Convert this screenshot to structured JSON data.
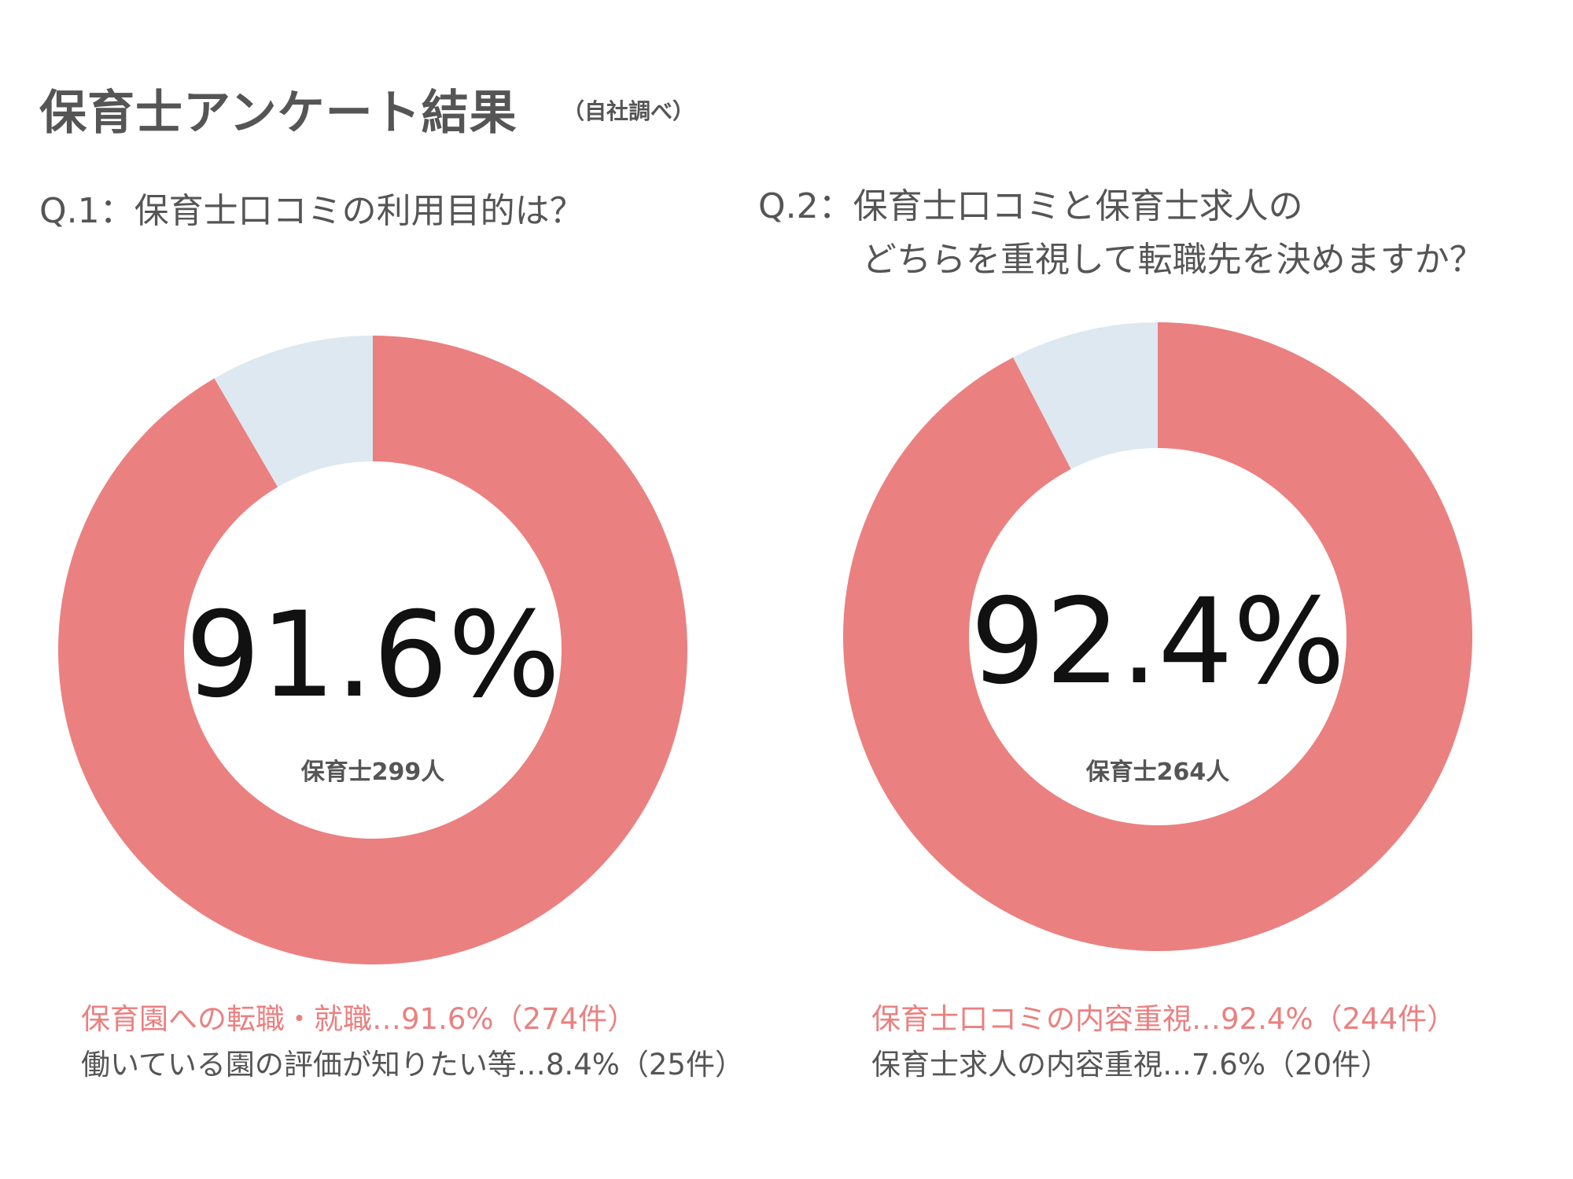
{
  "title": "保育士アンケート結果",
  "subtitle": "（自社調べ）",
  "colors": {
    "primary": "#EB8080",
    "secondary": "#DDE8F0",
    "text": "#555555"
  },
  "chart_data": [
    {
      "type": "pie",
      "variant": "donut",
      "title": "Q.1：保育士口コミの利用目的は？",
      "center_label": "91.6%",
      "count_label": "保育士299人",
      "categories": [
        "保育園への転職・就職",
        "働いている園の評価が知りたい等"
      ],
      "values": [
        91.6,
        8.4
      ],
      "counts": [
        274,
        25
      ],
      "colors": [
        "#EB8080",
        "#DDE8F0"
      ],
      "legend": [
        "保育園への転職・就職…91.6%（274件）",
        "働いている園の評価が知りたい等…8.4%（25件）"
      ],
      "legend_placement": "bottom"
    },
    {
      "type": "pie",
      "variant": "donut",
      "title": "Q.2：保育士口コミと保育士求人の",
      "title_line2": "どちらを重視して転職先を決めますか？",
      "center_label": "92.4%",
      "count_label": "保育士264人",
      "categories": [
        "保育士口コミの内容重視",
        "保育士求人の内容重視"
      ],
      "values": [
        92.4,
        7.6
      ],
      "counts": [
        244,
        20
      ],
      "colors": [
        "#EB8080",
        "#DDE8F0"
      ],
      "legend": [
        "保育士口コミの内容重視…92.4%（244件）",
        "保育士求人の内容重視…7.6%（20件）"
      ],
      "legend_placement": "bottom"
    }
  ]
}
